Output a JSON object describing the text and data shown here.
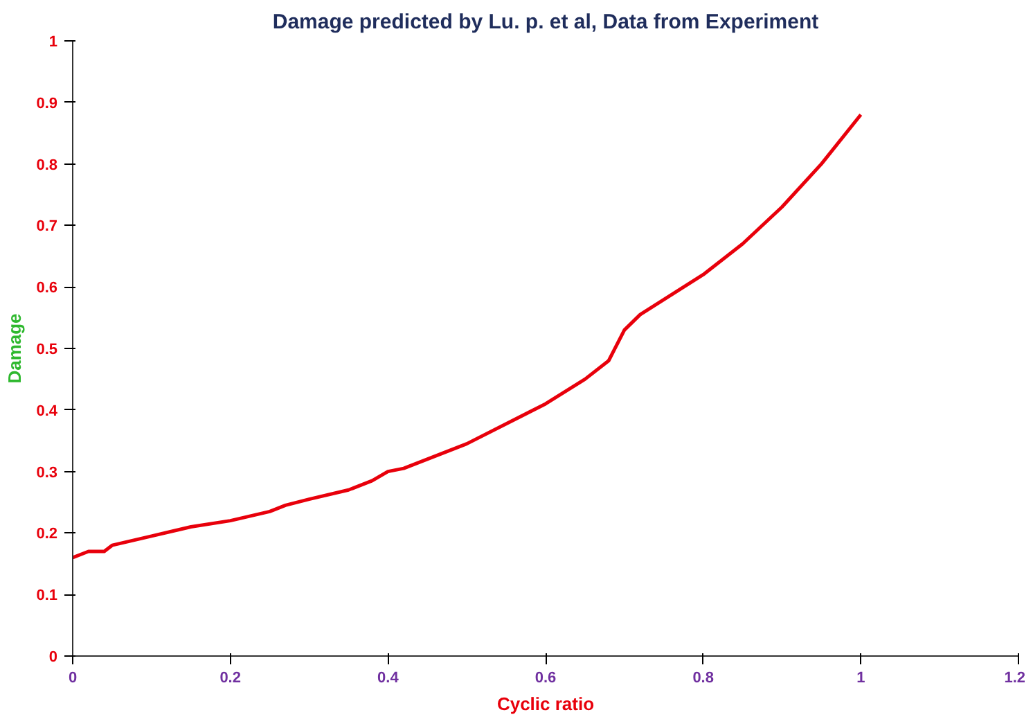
{
  "chart_data": {
    "type": "line",
    "title": "Damage predicted by Lu. p. et al, Data from Experiment",
    "xlabel": "Cyclic ratio",
    "ylabel": "Damage",
    "x": [
      0,
      0.02,
      0.04,
      0.05,
      0.1,
      0.15,
      0.2,
      0.25,
      0.27,
      0.3,
      0.35,
      0.38,
      0.4,
      0.42,
      0.5,
      0.6,
      0.65,
      0.68,
      0.7,
      0.72,
      0.8,
      0.85,
      0.9,
      0.95,
      1.0
    ],
    "series": [
      {
        "color": "#e8000b",
        "values": [
          0.16,
          0.17,
          0.17,
          0.18,
          0.195,
          0.21,
          0.22,
          0.235,
          0.245,
          0.255,
          0.27,
          0.285,
          0.3,
          0.305,
          0.345,
          0.41,
          0.45,
          0.48,
          0.53,
          0.555,
          0.62,
          0.67,
          0.73,
          0.8,
          0.88
        ]
      }
    ],
    "xlim": [
      0,
      1.2
    ],
    "xticks": [
      0,
      0.2,
      0.4,
      0.6,
      0.8,
      1,
      1.2
    ],
    "ylim": [
      0,
      1
    ],
    "yticks": [
      0,
      0.1,
      0.2,
      0.3,
      0.4,
      0.5,
      0.6,
      0.7,
      0.8,
      0.9,
      1
    ],
    "grid": false,
    "marker": "none",
    "line_style": "solid"
  }
}
